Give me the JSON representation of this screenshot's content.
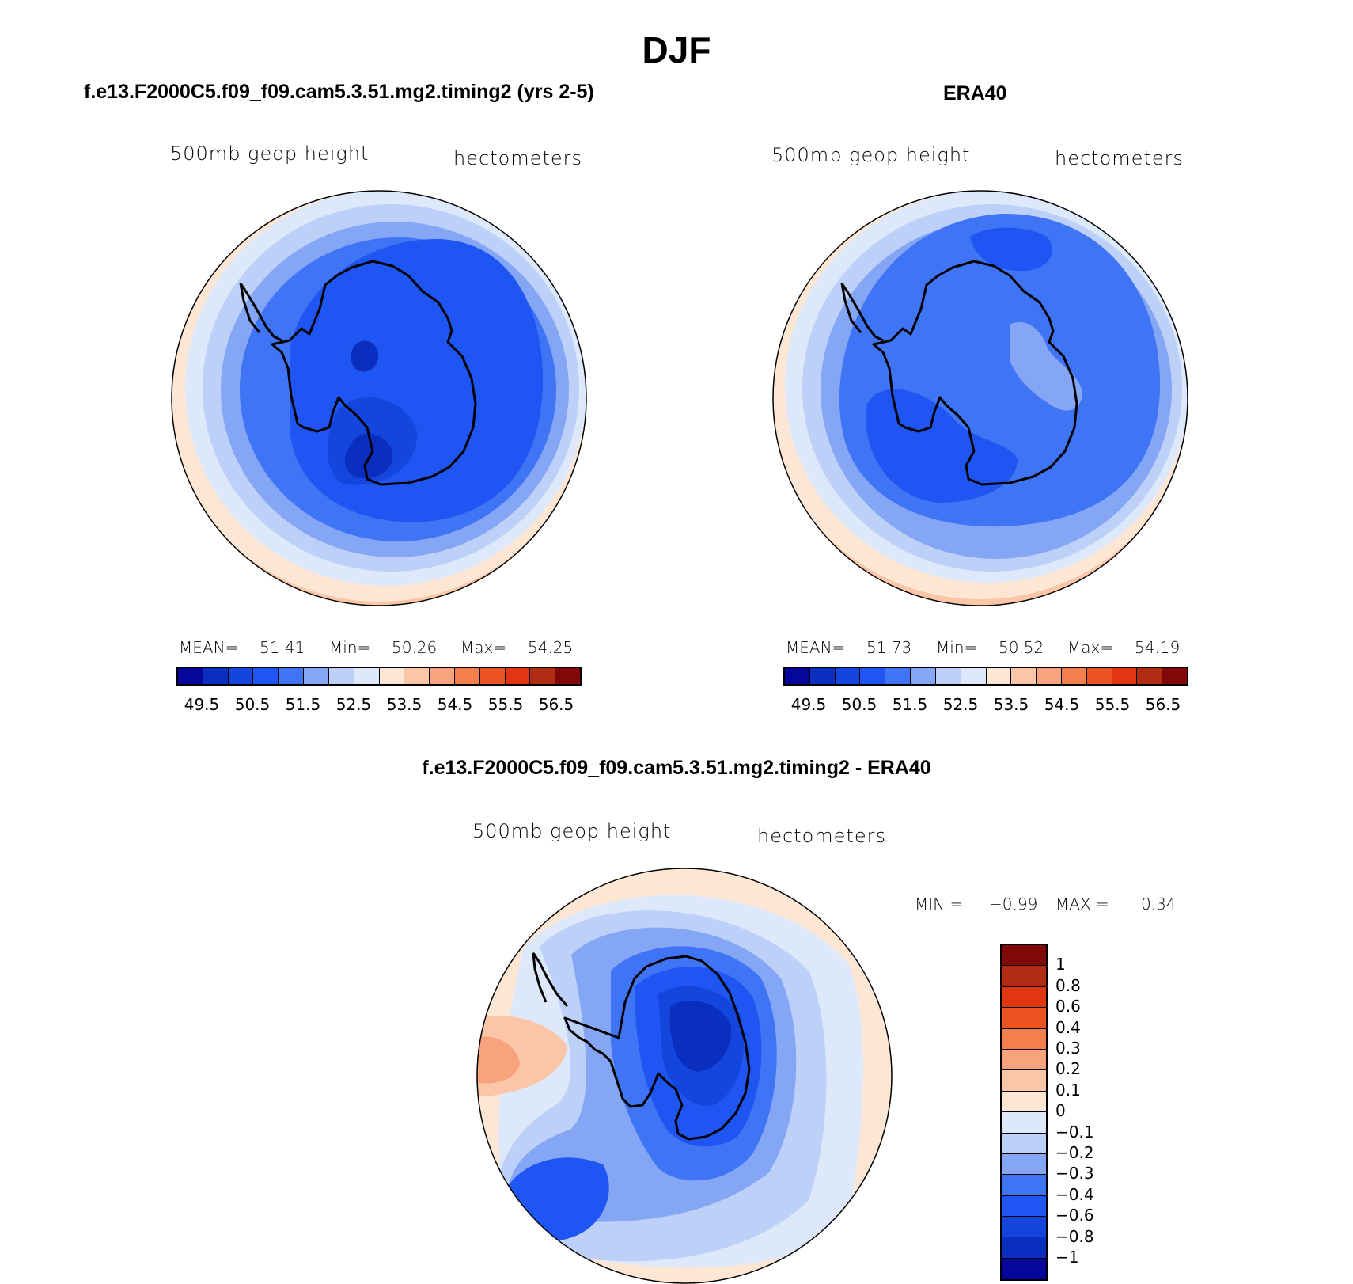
{
  "figure": {
    "title": "DJF",
    "panels": [
      {
        "title": "f.e13.F2000C5.f09_f09.cam5.3.51.mg2.timing2 (yrs 2-5)",
        "variable_label": "500mb  geop  height",
        "units_label": "hectometers",
        "stats": {
          "mean_label": "MEAN=",
          "mean": "51.41",
          "min_label": "Min=",
          "min": "50.26",
          "max_label": "Max=",
          "max": "54.25"
        }
      },
      {
        "title": "ERA40",
        "variable_label": "500mb  geop  height",
        "units_label": "hectometers",
        "stats": {
          "mean_label": "MEAN=",
          "mean": "51.73",
          "min_label": "Min=",
          "min": "50.52",
          "max_label": "Max=",
          "max": "54.19"
        }
      },
      {
        "title": "f.e13.F2000C5.f09_f09.cam5.3.51.mg2.timing2 - ERA40",
        "variable_label": "500mb  geop  height",
        "units_label": "hectometers",
        "stats": {
          "min_label": "MIN =",
          "min": "−0.99",
          "max_label": "MAX =",
          "max": "0.34"
        }
      }
    ]
  },
  "chart_data": [
    {
      "type": "heatmap",
      "projection": "polar-stereographic-south",
      "title": "f.e13.F2000C5.f09_f09.cam5.3.51.mg2.timing2 (yrs 2-5)",
      "field": "500mb geop height",
      "units": "hectometers",
      "mean": 51.41,
      "min": 50.26,
      "max": 54.25,
      "colorbar_ticks": [
        "49.5",
        "50.5",
        "51.5",
        "52.5",
        "53.5",
        "54.5",
        "55.5",
        "56.5"
      ],
      "colorbar_colors": [
        "#06069a",
        "#0a2fbf",
        "#1446dd",
        "#1f55f2",
        "#3f74f5",
        "#85a6f5",
        "#bdd0f8",
        "#dde9fb",
        "#fde7d4",
        "#fbc6a8",
        "#f7a37e",
        "#f47e4c",
        "#ee5421",
        "#e03711",
        "#b22c13",
        "#820707"
      ]
    },
    {
      "type": "heatmap",
      "projection": "polar-stereographic-south",
      "title": "ERA40",
      "field": "500mb geop height",
      "units": "hectometers",
      "mean": 51.73,
      "min": 50.52,
      "max": 54.19,
      "colorbar_ticks": [
        "49.5",
        "50.5",
        "51.5",
        "52.5",
        "53.5",
        "54.5",
        "55.5",
        "56.5"
      ],
      "colorbar_colors": [
        "#06069a",
        "#0a2fbf",
        "#1446dd",
        "#1f55f2",
        "#3f74f5",
        "#85a6f5",
        "#bdd0f8",
        "#dde9fb",
        "#fde7d4",
        "#fbc6a8",
        "#f7a37e",
        "#f47e4c",
        "#ee5421",
        "#e03711",
        "#b22c13",
        "#820707"
      ]
    },
    {
      "type": "heatmap",
      "projection": "polar-stereographic-south",
      "title": "f.e13.F2000C5.f09_f09.cam5.3.51.mg2.timing2 - ERA40",
      "field": "500mb geop height",
      "units": "hectometers",
      "min": -0.99,
      "max": 0.34,
      "colorbar_ticks": [
        "1",
        "0.8",
        "0.6",
        "0.4",
        "0.3",
        "0.2",
        "0.1",
        "0",
        "−0.1",
        "−0.2",
        "−0.3",
        "−0.4",
        "−0.6",
        "−0.8",
        "−1"
      ],
      "colorbar_colors": [
        "#820707",
        "#b22c13",
        "#e03711",
        "#ee5421",
        "#f47e4c",
        "#f7a37e",
        "#fbc6a8",
        "#fde7d4",
        "#dde9fb",
        "#bdd0f8",
        "#85a6f5",
        "#3f74f5",
        "#1f55f2",
        "#1446dd",
        "#0a2fbf",
        "#06069a"
      ]
    }
  ]
}
